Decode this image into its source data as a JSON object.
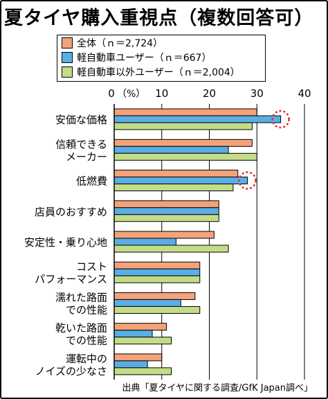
{
  "title": "夏タイヤ購入重視点（複数回答可）",
  "source": "出典「夏タイヤに関する調査/GfK Japan調べ」",
  "axis_unit": "（%）",
  "colors": {
    "all": "#f4a27a",
    "kei": "#5aaee3",
    "non_kei": "#c4dc8a",
    "highlight": "#e0302a"
  },
  "chart_data": {
    "type": "bar",
    "orientation": "horizontal",
    "title": "夏タイヤ購入重視点（複数回答可）",
    "xlabel": "（%）",
    "xlim": [
      0,
      40
    ],
    "xticks": [
      "0",
      "10",
      "20",
      "30",
      "40"
    ],
    "legend_position": "top",
    "categories": [
      "安価な価格",
      "信頼できる\nメーカー",
      "低燃費",
      "店員のおすすめ",
      "安定性・乗り心地",
      "コスト\nパフォーマンス",
      "濡れた路面\nでの性能",
      "乾いた路面\nでの性能",
      "運転中の\nノイズの少なさ"
    ],
    "series": [
      {
        "name": "全体（ｎ＝2,724）",
        "values": [
          30,
          29,
          26,
          22,
          21,
          18,
          17,
          11,
          10
        ]
      },
      {
        "name": "軽自動車ユーザー（ｎ＝667）",
        "values": [
          35,
          24,
          28,
          22,
          13,
          18,
          14,
          8,
          7
        ]
      },
      {
        "name": "軽自動車以外ユーザー（ｎ＝2,004）",
        "values": [
          29,
          30,
          25,
          22,
          24,
          18,
          18,
          12,
          12
        ]
      }
    ],
    "highlighted": [
      {
        "category": "安価な価格",
        "series": "軽自動車ユーザー（ｎ＝667）"
      },
      {
        "category": "低燃費",
        "series": "軽自動車ユーザー（ｎ＝667）"
      }
    ]
  }
}
